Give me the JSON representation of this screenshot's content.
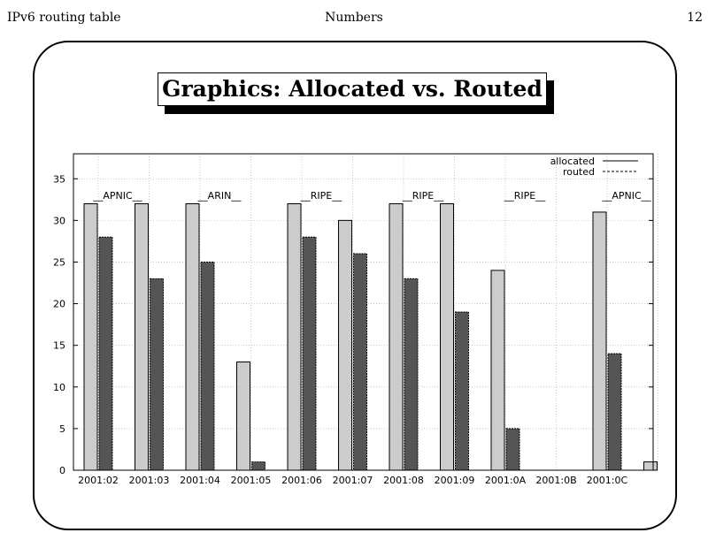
{
  "header": {
    "left": "IPv6 routing table",
    "center": "Numbers",
    "right": "12"
  },
  "slide": {
    "title": "Graphics: Allocated vs. Routed"
  },
  "colors": {
    "allocated": "#cccccc",
    "routed": "#555555"
  },
  "chart_data": {
    "type": "bar",
    "categories": [
      "2001:02",
      "2001:03",
      "2001:04",
      "2001:05",
      "2001:06",
      "2001:07",
      "2001:08",
      "2001:09",
      "2001:0A",
      "2001:0B",
      "2001:0C",
      ""
    ],
    "series": [
      {
        "name": "allocated",
        "values": [
          32,
          32,
          32,
          13,
          32,
          30,
          32,
          32,
          24,
          0,
          31,
          1
        ]
      },
      {
        "name": "routed",
        "values": [
          28,
          23,
          25,
          1,
          28,
          26,
          23,
          19,
          5,
          0,
          14,
          0
        ]
      }
    ],
    "rir_labels": [
      {
        "label": "__APNIC__",
        "category_index": 0
      },
      {
        "label": "__ARIN__",
        "category_index": 2
      },
      {
        "label": "__RIPE__",
        "category_index": 4
      },
      {
        "label": "__RIPE__",
        "category_index": 6
      },
      {
        "label": "__RIPE__",
        "category_index": 8
      },
      {
        "label": "__APNIC__",
        "category_index": 10
      }
    ],
    "ylim": [
      0,
      38
    ],
    "yticks": [
      0,
      5,
      10,
      15,
      20,
      25,
      30,
      35
    ],
    "grid": true,
    "legend": "top-right"
  }
}
